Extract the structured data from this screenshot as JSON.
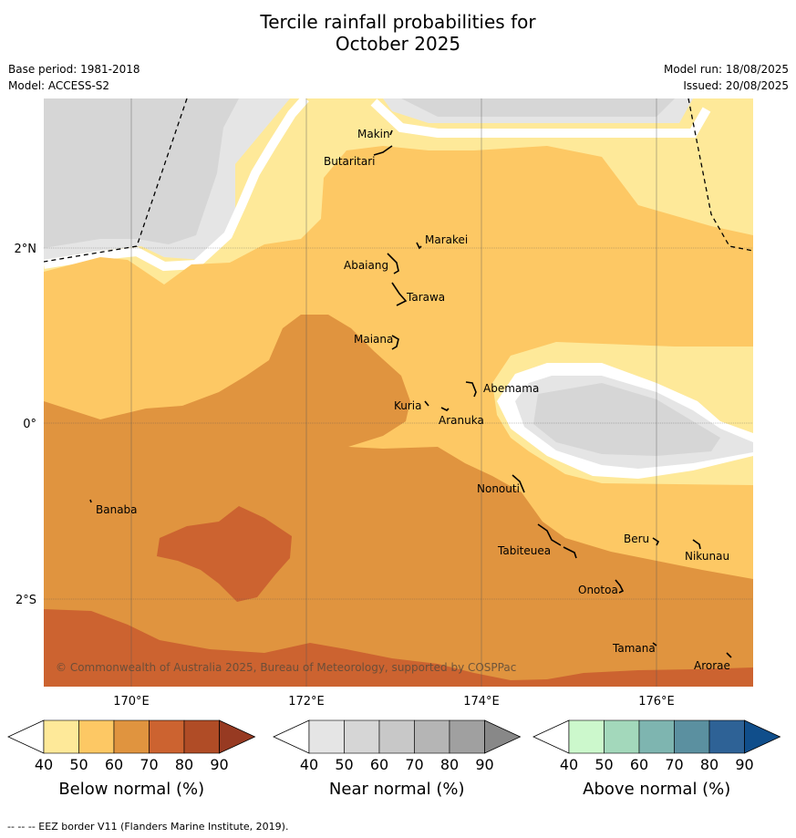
{
  "title_line1": "Tercile rainfall probabilities for",
  "title_line2": "October 2025",
  "meta": {
    "base_period": "Base period: 1981-2018",
    "model": "Model: ACCESS-S2",
    "model_run": "Model run: 18/08/2025",
    "issued": "Issued: 20/08/2025"
  },
  "map": {
    "lat_labels": [
      "2°N",
      "0°",
      "2°S"
    ],
    "lon_labels": [
      "170°E",
      "172°E",
      "174°E",
      "176°E"
    ],
    "copyright": "© Commonwealth of Australia 2025, Bureau of Meteorology, supported by COSPPac",
    "places": [
      "Makin",
      "Butaritari",
      "Marakei",
      "Abaiang",
      "Tarawa",
      "Maiana",
      "Abemama",
      "Kuria",
      "Aranuka",
      "Banaba",
      "Nonouti",
      "Beru",
      "Nikunau",
      "Tabiteuea",
      "Onotoa",
      "Tamana",
      "Arorae"
    ]
  },
  "colorbars": [
    {
      "label": "Below normal (%)",
      "ticks": [
        "40",
        "50",
        "60",
        "70",
        "80",
        "90"
      ],
      "colors": [
        "#fee999",
        "#fdc864",
        "#e0943f",
        "#cc6330",
        "#b04c26",
        "#973a22"
      ]
    },
    {
      "label": "Near normal (%)",
      "ticks": [
        "40",
        "50",
        "60",
        "70",
        "80",
        "90"
      ],
      "colors": [
        "#e5e5e5",
        "#d6d6d6",
        "#c8c8c8",
        "#b5b5b5",
        "#a0a0a0",
        "#888888"
      ]
    },
    {
      "label": "Above normal (%)",
      "ticks": [
        "40",
        "50",
        "60",
        "70",
        "80",
        "90"
      ],
      "colors": [
        "#ccf8cc",
        "#a3d8bb",
        "#7eb5b0",
        "#5b90a0",
        "#2e6296",
        "#104e8b"
      ]
    }
  ],
  "footer": "--  --  -- EEZ border V11 (Flanders Marine Institute, 2019)."
}
